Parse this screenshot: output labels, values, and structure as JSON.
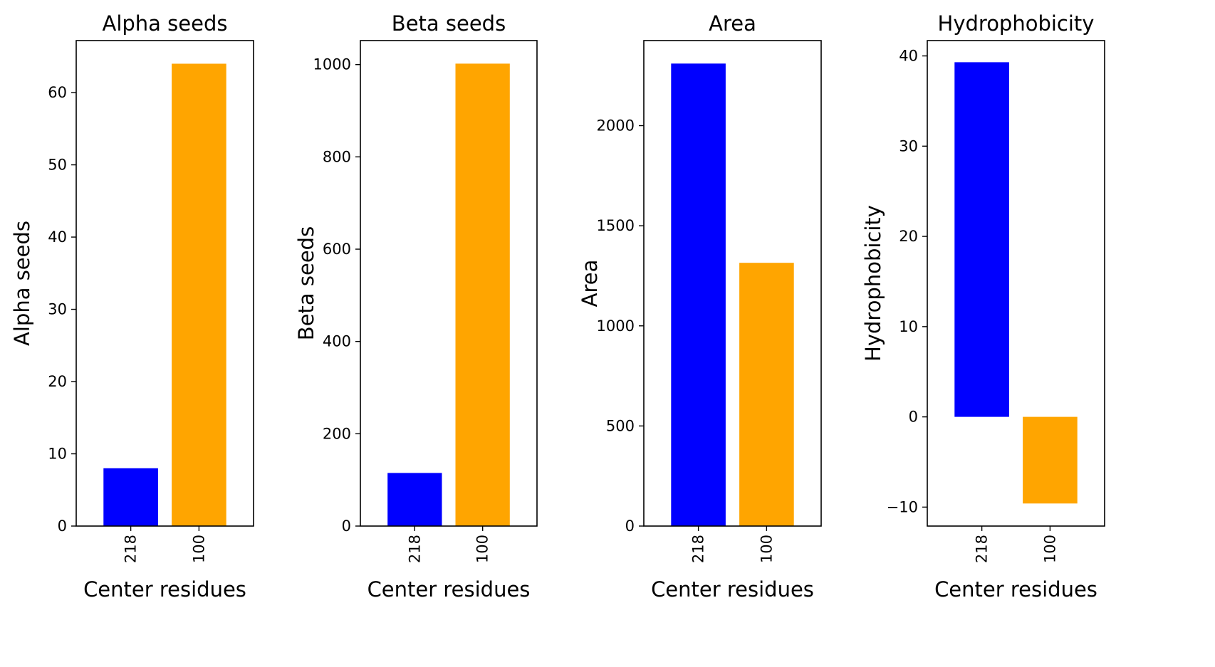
{
  "chart_data": [
    {
      "type": "bar",
      "title": "Alpha seeds",
      "xlabel": "Center residues",
      "ylabel": "Alpha seeds",
      "categories": [
        "218",
        "100"
      ],
      "values": [
        8,
        64
      ],
      "colors": [
        "#0000ff",
        "#ffa500"
      ],
      "ylim": [
        0,
        67.2
      ],
      "yticks": [
        0,
        10,
        20,
        30,
        40,
        50,
        60
      ],
      "ytick_labels": [
        "0",
        "10",
        "20",
        "30",
        "40",
        "50",
        "60"
      ],
      "grid": false,
      "legend": "none"
    },
    {
      "type": "bar",
      "title": "Beta seeds",
      "xlabel": "Center residues",
      "ylabel": "Beta seeds",
      "categories": [
        "218",
        "100"
      ],
      "values": [
        115,
        1002
      ],
      "colors": [
        "#0000ff",
        "#ffa500"
      ],
      "ylim": [
        0,
        1052
      ],
      "yticks": [
        0,
        200,
        400,
        600,
        800,
        1000
      ],
      "ytick_labels": [
        "0",
        "200",
        "400",
        "600",
        "800",
        "1000"
      ],
      "grid": false,
      "legend": "none"
    },
    {
      "type": "bar",
      "title": "Area",
      "xlabel": "Center residues",
      "ylabel": "Area",
      "categories": [
        "218",
        "100"
      ],
      "values": [
        2310,
        1315
      ],
      "colors": [
        "#0000ff",
        "#ffa500"
      ],
      "ylim": [
        0,
        2425
      ],
      "yticks": [
        0,
        500,
        1000,
        1500,
        2000
      ],
      "ytick_labels": [
        "0",
        "500",
        "1000",
        "1500",
        "2000"
      ],
      "grid": false,
      "legend": "none"
    },
    {
      "type": "bar",
      "title": "Hydrophobicity",
      "xlabel": "Center residues",
      "ylabel": "Hydrophobicity",
      "categories": [
        "218",
        "100"
      ],
      "values": [
        39.3,
        -9.6
      ],
      "colors": [
        "#0000ff",
        "#ffa500"
      ],
      "ylim": [
        -12.1,
        41.7
      ],
      "yticks": [
        -10,
        0,
        10,
        20,
        30,
        40
      ],
      "ytick_labels": [
        "−10",
        "0",
        "10",
        "20",
        "30",
        "40"
      ],
      "grid": false,
      "legend": "none"
    }
  ]
}
